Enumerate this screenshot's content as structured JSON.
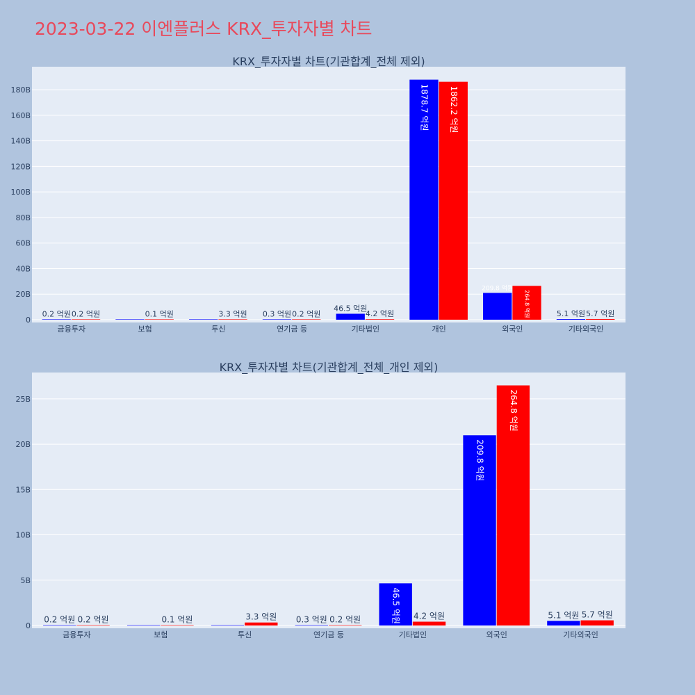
{
  "page": {
    "title": "2023-03-22 이엔플러스 KRX_투자자별 차트"
  },
  "colors": {
    "background": "#b0c4de",
    "plot_background": "#e5ecf6",
    "grid": "#ffffff",
    "title": "#e8495b",
    "text": "#2a3f5f",
    "series_a": "#0000ff",
    "series_b": "#ff0000"
  },
  "chart_data": [
    {
      "type": "bar",
      "title": "KRX_투자자별 차트(기관합계_전체 제외)",
      "categories": [
        "금융투자",
        "보험",
        "투신",
        "연기금 등",
        "기타법인",
        "개인",
        "외국인",
        "기타외국인"
      ],
      "series": [
        {
          "color": "#0000ff",
          "values": [
            0.02,
            0,
            0,
            0.03,
            4.65,
            187.87,
            20.98,
            0.51
          ],
          "labels": [
            "0.2 억원",
            "",
            "",
            "0.3 억원",
            "46.5 억원",
            "1878.7 억원",
            "209.8 억원",
            "5.1 억원"
          ]
        },
        {
          "color": "#ff0000",
          "values": [
            0.02,
            0.01,
            0.33,
            0.02,
            0.42,
            186.22,
            26.48,
            0.57
          ],
          "labels": [
            "0.2 억원",
            "0.1 억원",
            "3.3 억원",
            "0.2 억원",
            "4.2 억원",
            "1862.2 억원",
            "264.8 억원",
            "5.7 억원"
          ]
        }
      ],
      "ylim": [
        0,
        198
      ],
      "yticks": [
        0,
        20,
        40,
        60,
        80,
        100,
        120,
        140,
        160,
        180
      ],
      "ytick_labels": [
        "0",
        "20B",
        "40B",
        "60B",
        "80B",
        "100B",
        "120B",
        "140B",
        "160B",
        "180B"
      ],
      "grid": true
    },
    {
      "type": "bar",
      "title": "KRX_투자자별 차트(기관합계_전체_개인 제외)",
      "categories": [
        "금융투자",
        "보험",
        "투신",
        "연기금 등",
        "기타법인",
        "외국인",
        "기타외국인"
      ],
      "series": [
        {
          "color": "#0000ff",
          "values": [
            0.02,
            0,
            0,
            0.03,
            4.65,
            20.98,
            0.51
          ],
          "labels": [
            "0.2 억원",
            "",
            "",
            "0.3 억원",
            "46.5 억원",
            "209.8 억원",
            "5.1 억원"
          ]
        },
        {
          "color": "#ff0000",
          "values": [
            0.02,
            0.01,
            0.33,
            0.02,
            0.42,
            26.48,
            0.57
          ],
          "labels": [
            "0.2 억원",
            "0.1 억원",
            "3.3 억원",
            "0.2 억원",
            "4.2 억원",
            "264.8 억원",
            "5.7 억원"
          ]
        }
      ],
      "ylim": [
        0,
        27.9
      ],
      "yticks": [
        0,
        5,
        10,
        15,
        20,
        25
      ],
      "ytick_labels": [
        "0",
        "5B",
        "10B",
        "15B",
        "20B",
        "25B"
      ],
      "grid": true
    }
  ]
}
